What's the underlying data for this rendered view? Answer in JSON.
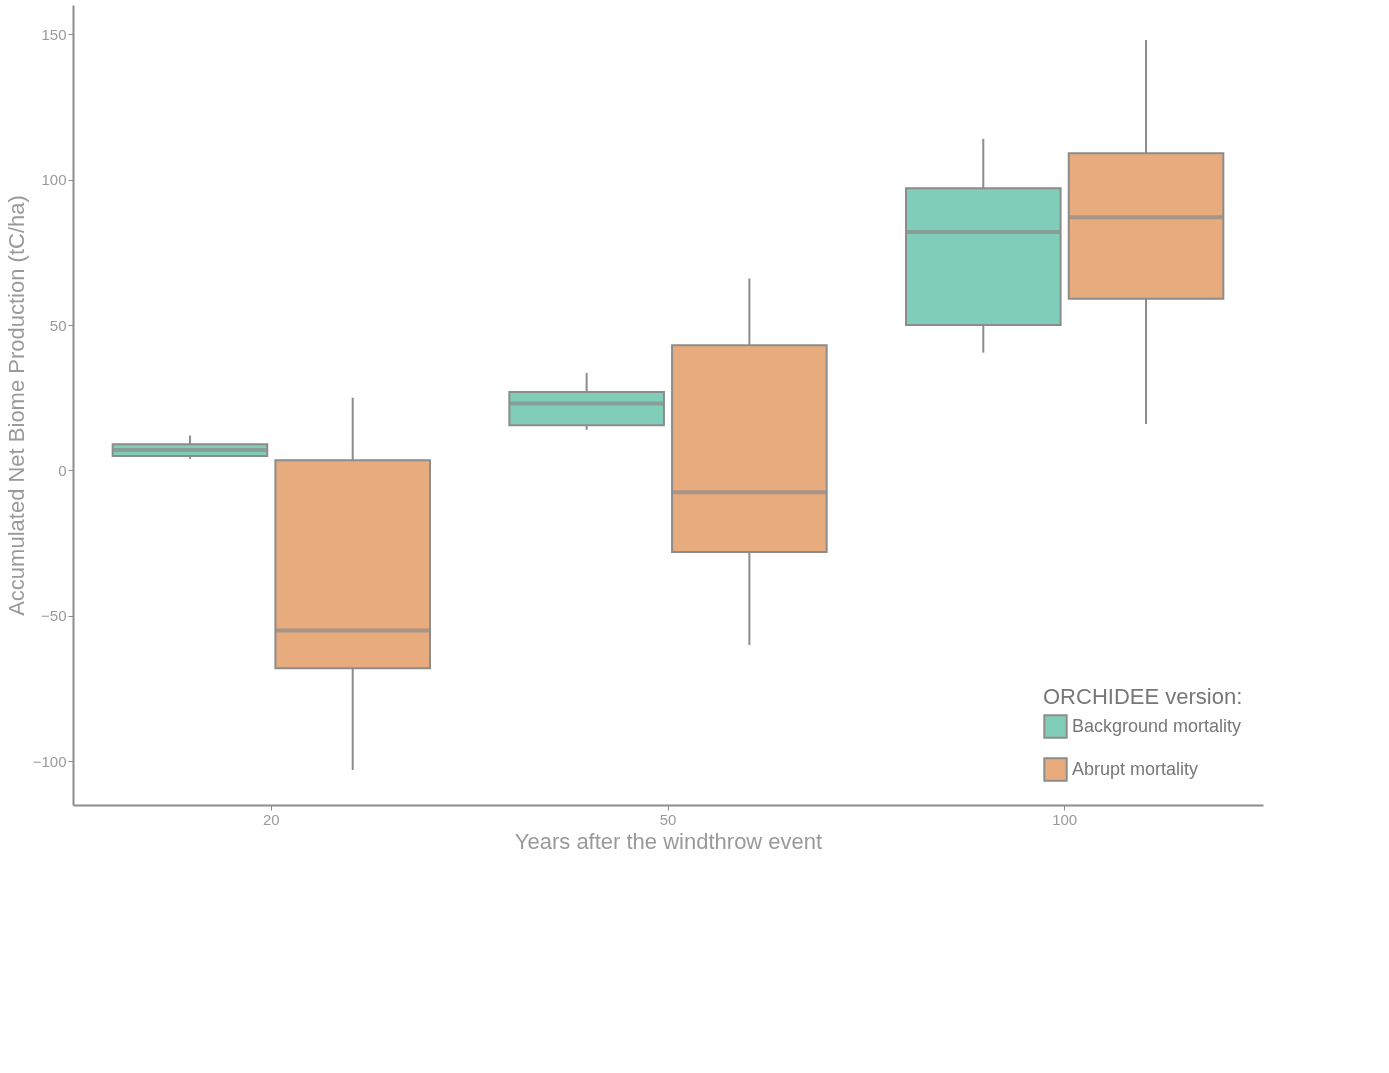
{
  "chart_data": {
    "type": "box",
    "xlabel": "Years after the windthrow event",
    "ylabel": "Accumulated Net Biome Production (tC/ha)",
    "legend_title": "ORCHIDEE version:",
    "categories": [
      "20",
      "50",
      "100"
    ],
    "ylim": [
      -115,
      160
    ],
    "yticks": [
      -100,
      -50,
      0,
      50,
      100,
      150
    ],
    "grid": false,
    "legend": "bottom right",
    "series": [
      {
        "name": "Background mortality",
        "color": "#80cdb9",
        "boxes": [
          {
            "low": 4,
            "q1": 5,
            "median": 7,
            "q3": 9,
            "high": 12
          },
          {
            "low": 14,
            "q1": 15.5,
            "median": 23,
            "q3": 27,
            "high": 33.5
          },
          {
            "low": 40.5,
            "q1": 50,
            "median": 82,
            "q3": 97,
            "high": 114
          }
        ]
      },
      {
        "name": "Abrupt mortality",
        "color": "#e8ab7e",
        "boxes": [
          {
            "low": -103,
            "q1": -68,
            "median": -55,
            "q3": 3.5,
            "high": 25
          },
          {
            "low": -60,
            "q1": -28,
            "median": -7.5,
            "q3": 43,
            "high": 66
          },
          {
            "low": 16,
            "q1": 59,
            "median": 87,
            "q3": 109,
            "high": 148
          }
        ]
      }
    ]
  }
}
